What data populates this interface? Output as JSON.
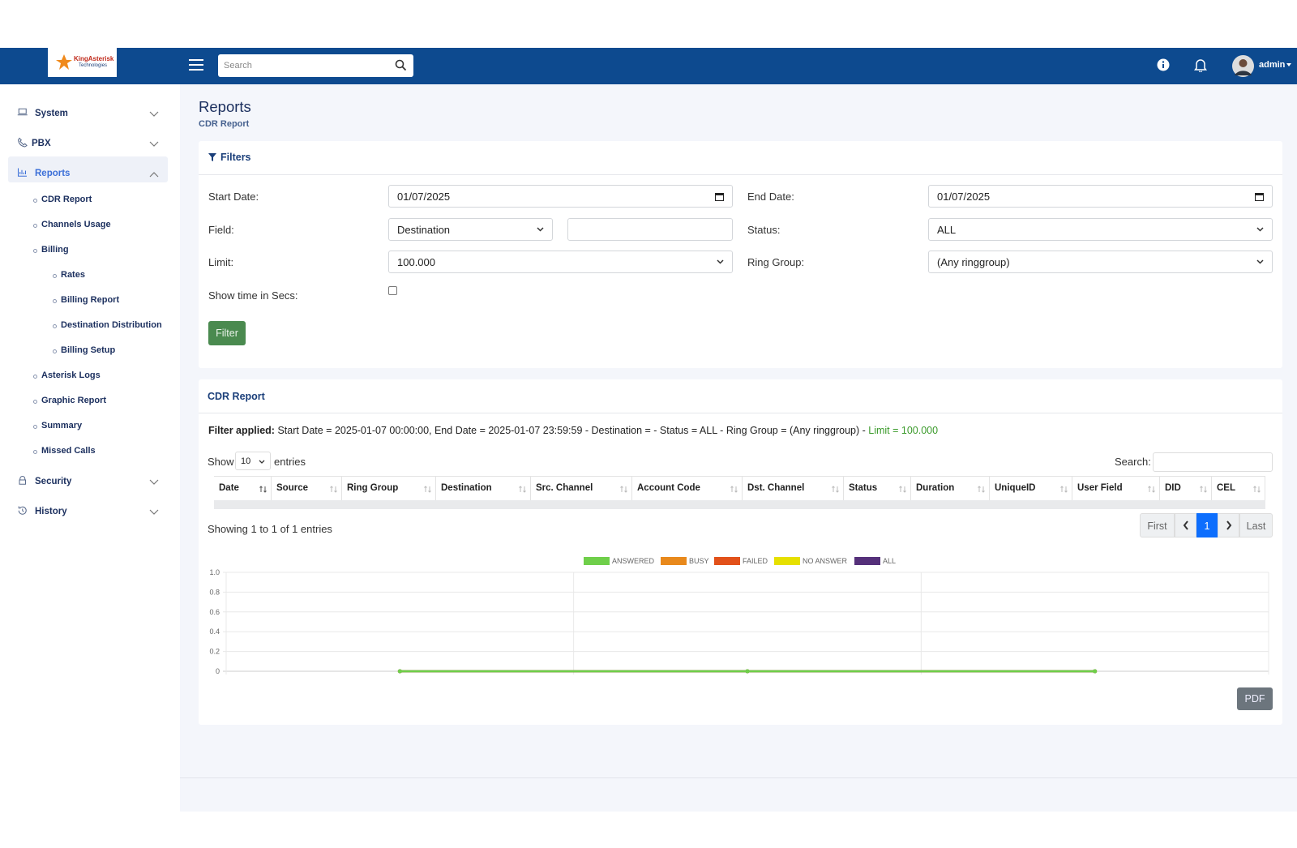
{
  "header": {
    "logo_title": "KingAsterisk",
    "logo_subtitle": "Technologies",
    "search_placeholder": "Search",
    "user": "admin"
  },
  "sidebar": {
    "menu": [
      {
        "label": "System"
      },
      {
        "label": "PBX"
      },
      {
        "label": "Reports",
        "items": [
          "CDR Report",
          "Channels Usage",
          "Billing",
          "Asterisk Logs",
          "Graphic Report",
          "Summary",
          "Missed Calls"
        ],
        "billing_items": [
          "Rates",
          "Billing Report",
          "Destination Distribution",
          "Billing Setup"
        ]
      },
      {
        "label": "Security"
      },
      {
        "label": "History"
      }
    ]
  },
  "page": {
    "title": "Reports",
    "breadcrumb": "CDR Report"
  },
  "filters": {
    "title": "Filters",
    "start_date": {
      "label": "Start Date:",
      "value": "01/07/2025"
    },
    "end_date": {
      "label": "End Date:",
      "value": "01/07/2025"
    },
    "field": {
      "label": "Field:",
      "value": "Destination"
    },
    "status": {
      "label": "Status:",
      "value": "ALL"
    },
    "limit": {
      "label": "Limit:",
      "value": "100.000"
    },
    "ring_group": {
      "label": "Ring Group:",
      "value": "(Any ringgroup)"
    },
    "show_time": {
      "label": "Show time in Secs:"
    },
    "button": "Filter"
  },
  "report": {
    "title": "CDR Report",
    "filter_applied_label": "Filter applied:",
    "filter_applied_text": "Start Date = 2025-01-07 00:00:00, End Date = 2025-01-07 23:59:59 - Destination = - Status = ALL - Ring Group = (Any ringgroup) -",
    "filter_applied_limit": "Limit = 100.000",
    "show": "Show",
    "page_length": "10",
    "entries": "entries",
    "search": "Search:",
    "columns": [
      "Date",
      "Source",
      "Ring Group",
      "Destination",
      "Src. Channel",
      "Account Code",
      "Dst. Channel",
      "Status",
      "Duration",
      "UniqueID",
      "User Field",
      "DID",
      "CEL"
    ],
    "info": "Showing 1 to 1 of 1 entries",
    "pagination": {
      "first": "First",
      "current": "1",
      "last": "Last"
    },
    "pdf": "PDF"
  },
  "chart": {
    "type": "line",
    "categories": [
      null,
      null,
      null
    ],
    "series": [
      {
        "name": "BUSY",
        "color": "#e8891c",
        "values": [
          0,
          0,
          0
        ]
      },
      {
        "name": "FAILED",
        "color": "#e2511a",
        "values": [
          0,
          0,
          0
        ]
      },
      {
        "name": "NO ANSWER",
        "color": "#e6e000",
        "values": [
          0,
          0,
          0
        ]
      },
      {
        "name": "ALL",
        "color": "#55307a",
        "values": [
          0,
          0,
          0
        ]
      },
      {
        "name": "ANSWERED",
        "color": "#6fcf4a",
        "values": [
          0,
          0,
          0
        ]
      }
    ],
    "legend_order": [
      4,
      0,
      1,
      2,
      3
    ],
    "ylim": [
      0,
      1
    ],
    "yticks": [
      0,
      0.2,
      0.4,
      0.6,
      0.8,
      {
        "value": 1,
        "label": "1.0"
      }
    ],
    "grid": true
  }
}
